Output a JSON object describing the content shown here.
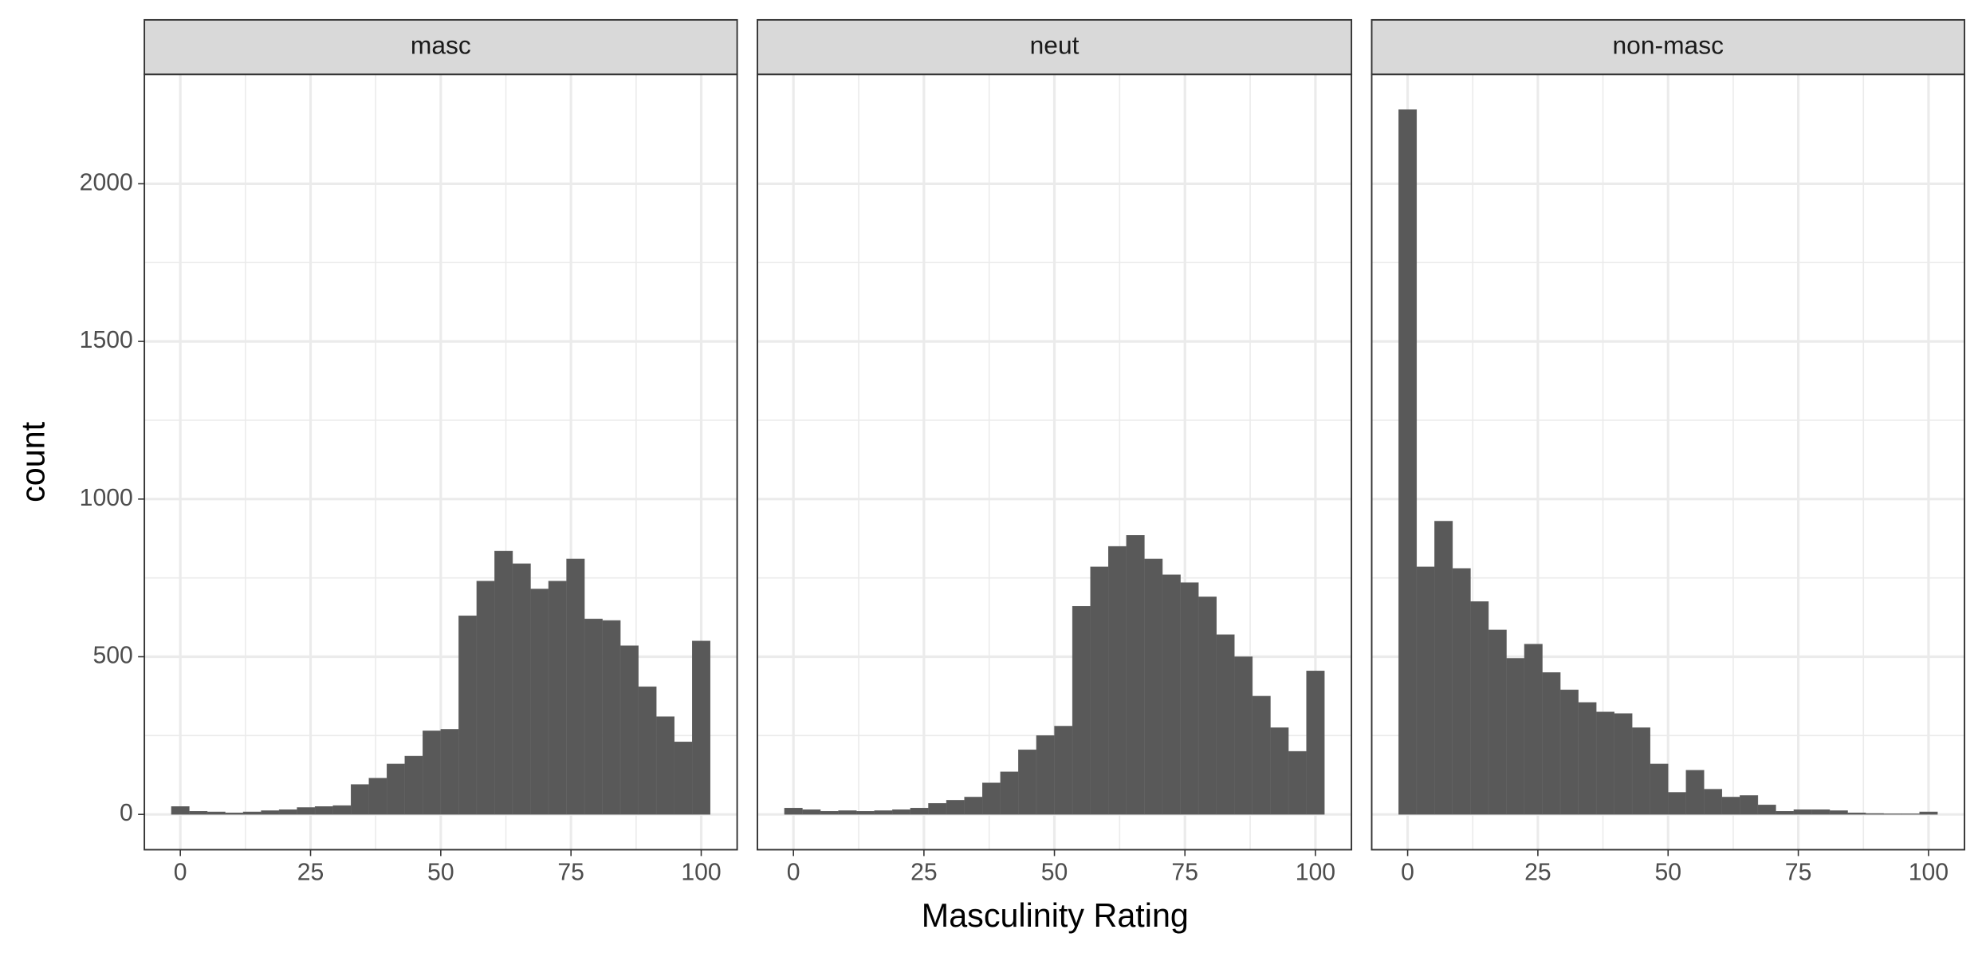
{
  "chart_data": {
    "type": "histogram",
    "x_label": "Masculinity Rating",
    "y_label": "count",
    "color": "#595959",
    "grid": true,
    "bins": [
      -1.72,
      1.72,
      5.17,
      8.62,
      12.07,
      15.52,
      18.97,
      22.41,
      25.86,
      29.31,
      32.76,
      36.21,
      39.66,
      43.1,
      46.55,
      50,
      53.45,
      56.9,
      60.34,
      63.79,
      67.24,
      70.69,
      74.14,
      77.59,
      81.03,
      84.48,
      87.93,
      91.38,
      94.83,
      98.28,
      101.72
    ],
    "xlim": [
      -6.9,
      106.9
    ],
    "ylim": [
      -112,
      2347
    ],
    "xticks": [
      0,
      25,
      50,
      75,
      100
    ],
    "yticks": [
      0,
      500,
      1000,
      1500,
      2000
    ],
    "facets": [
      {
        "title": "masc",
        "values": [
          25,
          10,
          8,
          5,
          8,
          12,
          15,
          22,
          25,
          28,
          95,
          115,
          160,
          185,
          265,
          270,
          630,
          740,
          835,
          795,
          715,
          740,
          810,
          620,
          615,
          535,
          405,
          310,
          230,
          550
        ]
      },
      {
        "title": "neut",
        "values": [
          20,
          15,
          10,
          12,
          10,
          12,
          15,
          20,
          35,
          45,
          55,
          100,
          135,
          205,
          250,
          280,
          660,
          785,
          850,
          885,
          810,
          760,
          735,
          690,
          570,
          500,
          375,
          275,
          200,
          455
        ]
      },
      {
        "title": "non-masc",
        "values": [
          2235,
          785,
          930,
          780,
          675,
          585,
          495,
          540,
          450,
          395,
          355,
          325,
          320,
          275,
          160,
          70,
          140,
          80,
          55,
          60,
          30,
          10,
          15,
          15,
          12,
          5,
          3,
          2,
          2,
          8
        ]
      }
    ]
  }
}
